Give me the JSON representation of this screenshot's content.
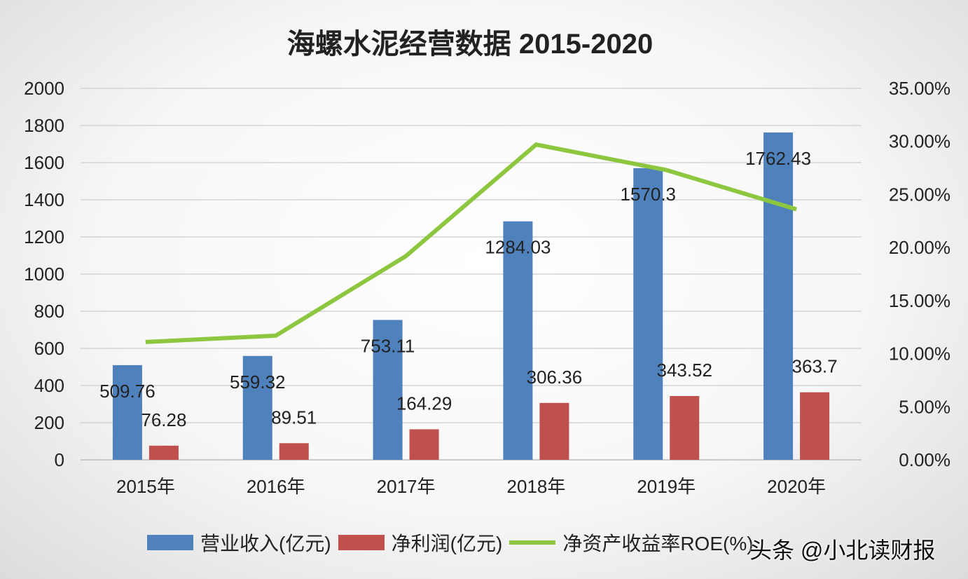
{
  "chart_data": {
    "type": "bar+line",
    "title": "海螺水泥经营数据 2015-2020",
    "categories": [
      "2015年",
      "2016年",
      "2017年",
      "2018年",
      "2019年",
      "2020年"
    ],
    "series": [
      {
        "name": "营业收入(亿元)",
        "type": "bar",
        "axis": "left",
        "color": "#4f81bd",
        "values": [
          509.76,
          559.32,
          753.11,
          1284.03,
          1570.3,
          1762.43
        ],
        "labels": [
          "509.76",
          "559.32",
          "753.11",
          "1284.03",
          "1570.3",
          "1762.43"
        ]
      },
      {
        "name": "净利润(亿元)",
        "type": "bar",
        "axis": "left",
        "color": "#c0504d",
        "values": [
          76.28,
          89.51,
          164.29,
          306.36,
          343.52,
          363.7
        ],
        "labels": [
          "76.28",
          "89.51",
          "164.29",
          "306.36",
          "343.52",
          "363.7"
        ]
      },
      {
        "name": "净资产收益率ROE(%)",
        "type": "line",
        "axis": "right",
        "color": "#8dc63f",
        "values": [
          11.1,
          11.7,
          19.2,
          29.7,
          27.3,
          23.6
        ]
      }
    ],
    "ylim": [
      0,
      2000
    ],
    "yticks": [
      "0",
      "200",
      "400",
      "600",
      "800",
      "1000",
      "1200",
      "1400",
      "1600",
      "1800",
      "2000"
    ],
    "y2lim": [
      0,
      35
    ],
    "y2ticks": [
      "0.00%",
      "5.00%",
      "10.00%",
      "15.00%",
      "20.00%",
      "25.00%",
      "30.00%",
      "35.00%"
    ],
    "grid": true,
    "legend": "bottom"
  },
  "watermark": "头条 @小北读财报"
}
